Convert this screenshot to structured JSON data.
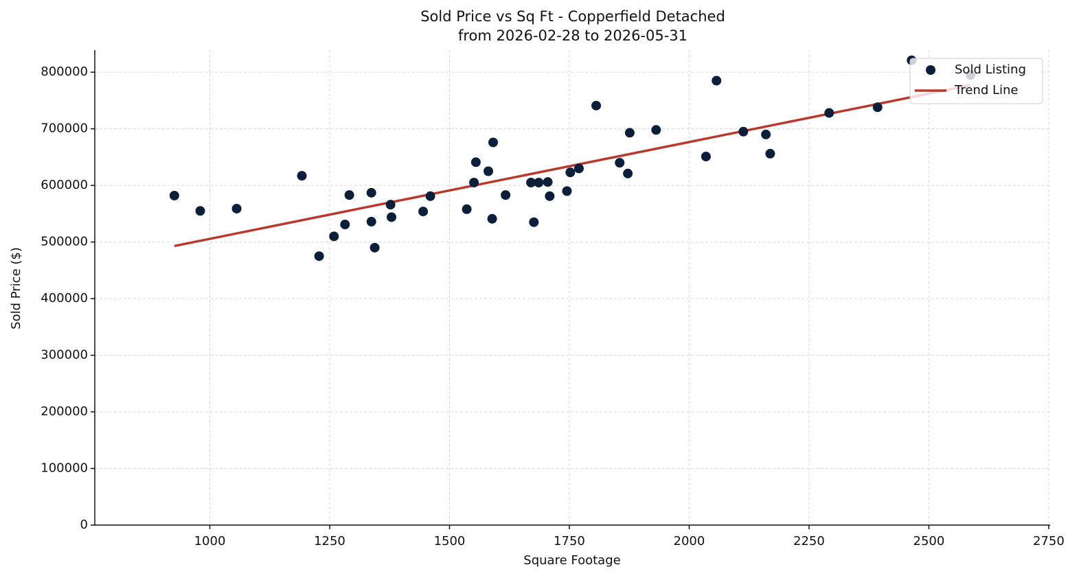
{
  "chart_data": {
    "type": "scatter",
    "title": "Sold Price vs Sq Ft - Copperfield Detached",
    "subtitle": "from 2026-02-28 to 2026-05-31",
    "x_label": "Square Footage",
    "y_label": "Sold Price ($)",
    "xlim": [
      760,
      2753
    ],
    "ylim": [
      0,
      839000
    ],
    "xticks": [
      1000,
      1250,
      1500,
      1750,
      2000,
      2250,
      2500,
      2750
    ],
    "yticks": [
      0,
      100000,
      200000,
      300000,
      400000,
      500000,
      600000,
      700000,
      800000
    ],
    "grid": true,
    "legend": "upper right",
    "series": [
      {
        "name": "Sold Listing",
        "type": "scatter",
        "color": "#0b1f3a",
        "x": [
          926,
          980,
          1056,
          1192,
          1228,
          1259,
          1282,
          1291,
          1337,
          1337,
          1344,
          1377,
          1379,
          1445,
          1460,
          1536,
          1551,
          1555,
          1581,
          1589,
          1591,
          1617,
          1670,
          1676,
          1686,
          1705,
          1709,
          1745,
          1752,
          1770,
          1806,
          1855,
          1872,
          1876,
          1931,
          2035,
          2057,
          2113,
          2160,
          2169,
          2292,
          2393,
          2464,
          2587
        ],
        "values": [
          582000,
          555000,
          559000,
          617000,
          475000,
          510000,
          531000,
          583000,
          536000,
          587000,
          490000,
          566000,
          544000,
          554000,
          581000,
          558000,
          605000,
          641000,
          625000,
          541000,
          676000,
          583000,
          605000,
          535000,
          605000,
          606000,
          581000,
          590000,
          623000,
          630000,
          741000,
          640000,
          621000,
          693000,
          698000,
          651000,
          785000,
          695000,
          690000,
          656000,
          728000,
          738000,
          821000,
          795000
        ]
      },
      {
        "name": "Trend Line",
        "type": "line",
        "color": "#b83a2e",
        "x": [
          926,
          2587
        ],
        "values": [
          493000,
          777000
        ]
      }
    ]
  }
}
